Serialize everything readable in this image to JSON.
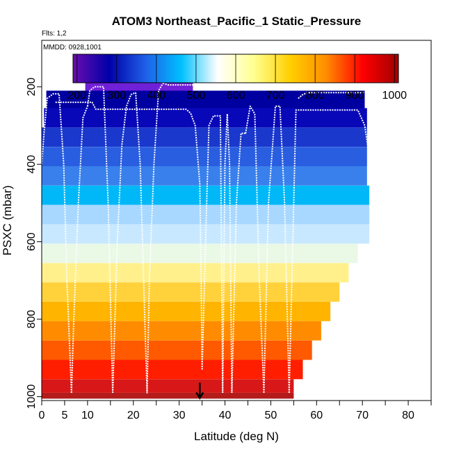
{
  "chart_data": {
    "type": "heatmap",
    "title": "ATOM3 Northeast_Pacific_1 Static_Pressure",
    "annotations": [
      "Flts: 1,2",
      "MMDD: 0928,1001"
    ],
    "xlabel": "Latitude (deg N)",
    "ylabel": "PSXC (mbar)",
    "xlim": [
      0,
      85
    ],
    "ylim": [
      1010,
      80
    ],
    "x_ticks": [
      0,
      5,
      10,
      20,
      30,
      40,
      50,
      60,
      70,
      80
    ],
    "y_ticks": [
      200,
      400,
      600,
      800,
      1000
    ],
    "colorbar": {
      "range": [
        190,
        1010
      ],
      "ticks": [
        200,
        300,
        400,
        500,
        600,
        700,
        800,
        900,
        1000
      ],
      "stops": [
        "#6a0dad",
        "#0000a8",
        "#1e5fe6",
        "#00c0ff",
        "#ffffff",
        "#ffff90",
        "#ffd000",
        "#ff8c00",
        "#ff0000",
        "#a00000"
      ]
    },
    "pressure_bands": [
      {
        "p": 190,
        "lat_min": 9.5,
        "lat_max": 33,
        "color": "#7020d8"
      },
      {
        "p": 230,
        "lat_min": 1,
        "lat_max": 70.5,
        "color": "#0000a0"
      },
      {
        "p": 280,
        "lat_min": 0.5,
        "lat_max": 71,
        "color": "#0808b8"
      },
      {
        "p": 330,
        "lat_min": 0,
        "lat_max": 71,
        "color": "#1a38cc"
      },
      {
        "p": 380,
        "lat_min": 0,
        "lat_max": 71,
        "color": "#2a5ee0"
      },
      {
        "p": 430,
        "lat_min": 0,
        "lat_max": 71,
        "color": "#3a80ec"
      },
      {
        "p": 480,
        "lat_min": 0,
        "lat_max": 71.5,
        "color": "#00b8f8"
      },
      {
        "p": 530,
        "lat_min": 0,
        "lat_max": 71.5,
        "color": "#a8d8ff"
      },
      {
        "p": 580,
        "lat_min": 0,
        "lat_max": 71.5,
        "color": "#c8e8ff"
      },
      {
        "p": 630,
        "lat_min": 0,
        "lat_max": 69,
        "color": "#eaf8e6"
      },
      {
        "p": 680,
        "lat_min": 0,
        "lat_max": 67,
        "color": "#fff08c"
      },
      {
        "p": 730,
        "lat_min": 0,
        "lat_max": 65,
        "color": "#ffd23c"
      },
      {
        "p": 780,
        "lat_min": 0,
        "lat_max": 63,
        "color": "#ffb400"
      },
      {
        "p": 830,
        "lat_min": 0,
        "lat_max": 61,
        "color": "#ff8c00"
      },
      {
        "p": 880,
        "lat_min": 0,
        "lat_max": 59,
        "color": "#ff5a00"
      },
      {
        "p": 930,
        "lat_min": 0,
        "lat_max": 57,
        "color": "#ff1e00"
      },
      {
        "p": 980,
        "lat_min": 0,
        "lat_max": 55,
        "color": "#d81818"
      },
      {
        "p": 1000,
        "lat_min": 0,
        "lat_max": 55,
        "color": "#b41c1c"
      }
    ],
    "profiles": [
      {
        "x": [
          0,
          0.5,
          1.2,
          2.5,
          3.8,
          4.8,
          5.5,
          6.2,
          6.5
        ],
        "y": [
          400,
          320,
          230,
          218,
          218,
          400,
          700,
          900,
          990
        ]
      },
      {
        "x": [
          6.5,
          7,
          8,
          9,
          10
        ],
        "y": [
          990,
          800,
          500,
          280,
          250
        ]
      },
      {
        "x": [
          10,
          10.5,
          11.5,
          12.5,
          13.5,
          14.5,
          15.5
        ],
        "y": [
          250,
          210,
          200,
          200,
          200,
          500,
          990
        ]
      },
      {
        "x": [
          15.5,
          16.5,
          17.5,
          18.5,
          19.5,
          20.5
        ],
        "y": [
          990,
          600,
          350,
          250,
          220,
          215
        ]
      },
      {
        "x": [
          20.5,
          21.5,
          22.5,
          23,
          23.5,
          24.5,
          25.5,
          26.5
        ],
        "y": [
          215,
          400,
          800,
          990,
          700,
          400,
          210,
          190
        ]
      },
      {
        "x": [
          26.5,
          27.5,
          29,
          32,
          33
        ],
        "y": [
          190,
          195,
          195,
          195,
          195
        ]
      },
      {
        "x": [
          3,
          6.5,
          11,
          11.8,
          20.5,
          31.5,
          32.5,
          33.5,
          34.5,
          34.8,
          35
        ],
        "y": [
          240,
          240,
          240,
          258,
          258,
          258,
          268,
          300,
          450,
          700,
          930
        ]
      },
      {
        "x": [
          35,
          36,
          36.5,
          37.5,
          38,
          39,
          39.5
        ],
        "y": [
          930,
          500,
          300,
          275,
          275,
          275,
          990
        ]
      },
      {
        "x": [
          39.5,
          40,
          40.5,
          41,
          41.5
        ],
        "y": [
          990,
          400,
          270,
          400,
          990
        ]
      },
      {
        "x": [
          41.5,
          42.5,
          43.5,
          44.5
        ],
        "y": [
          990,
          500,
          320,
          320
        ]
      },
      {
        "x": [
          44.5,
          45.5,
          46.5,
          47.5,
          48.5
        ],
        "y": [
          320,
          250,
          270,
          700,
          990
        ]
      },
      {
        "x": [
          48.5,
          49.5,
          51,
          52,
          53,
          54
        ],
        "y": [
          990,
          500,
          250,
          250,
          500,
          990
        ]
      },
      {
        "x": [
          54,
          55.5,
          57.5,
          63,
          69,
          70.5,
          71.5
        ],
        "y": [
          990,
          260,
          260,
          260,
          260,
          300,
          380
        ]
      },
      {
        "x": [
          56,
          57,
          58,
          65,
          70.5
        ],
        "y": [
          230,
          220,
          215,
          215,
          215
        ]
      }
    ],
    "marker": {
      "x": 34.5,
      "y": 1000,
      "symbol": "down-arrow"
    }
  }
}
